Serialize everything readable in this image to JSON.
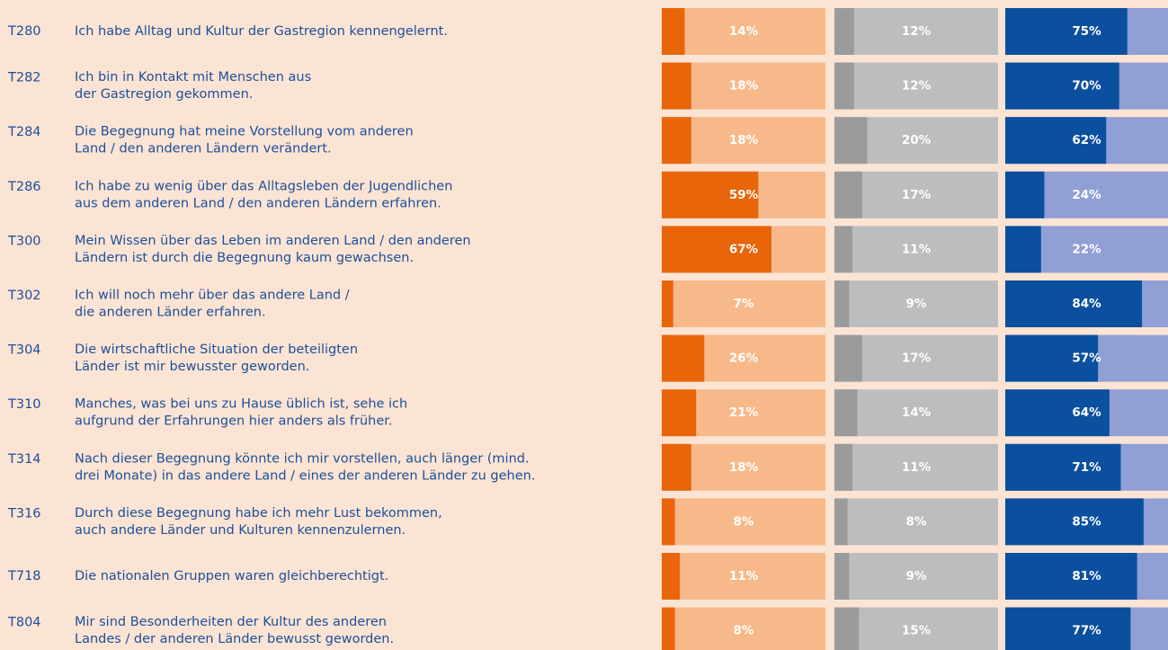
{
  "chart_data": {
    "type": "bar",
    "categories": [
      "T280",
      "T282",
      "T284",
      "T286",
      "T300",
      "T302",
      "T304",
      "T310",
      "T314",
      "T316",
      "T718",
      "T804"
    ],
    "labels": [
      [
        "Ich habe Alltag und Kultur der Gastregion kennengelernt."
      ],
      [
        "Ich bin in Kontakt mit Menschen aus",
        "der Gastregion gekommen."
      ],
      [
        "Die Begegnung hat meine Vorstellung vom anderen",
        "Land / den anderen Ländern verändert."
      ],
      [
        "Ich habe zu wenig über das Alltagsleben der Jugendlichen",
        "aus dem anderen Land / den anderen Ländern erfahren."
      ],
      [
        "Mein Wissen über das Leben im anderen Land / den anderen",
        "Ländern ist durch die Begegnung kaum gewachsen."
      ],
      [
        "Ich will noch mehr über das andere Land /",
        "die anderen Länder erfahren."
      ],
      [
        "Die wirtschaftliche Situation der beteiligten",
        "Länder ist mir bewusster geworden."
      ],
      [
        "Manches, was bei uns zu Hause üblich ist, sehe ich",
        "aufgrund der Erfahrungen hier anders als früher."
      ],
      [
        "Nach dieser Begegnung könnte ich mir vorstellen, auch länger (mind.",
        "drei Monate) in das andere Land / eines der anderen Länder zu gehen."
      ],
      [
        "Durch diese Begegnung habe ich mehr Lust bekommen,",
        "auch andere Länder und Kulturen kennenzulernen."
      ],
      [
        "Die nationalen Gruppen waren gleichberechtigt."
      ],
      [
        "Mir sind Besonderheiten der Kultur des anderen",
        "Landes / der anderen Länder bewusst geworden."
      ]
    ],
    "xlim": [
      0,
      100
    ],
    "series": [
      {
        "color": "#e8650a",
        "background": "#f8b98a",
        "values": [
          14,
          18,
          18,
          59,
          67,
          7,
          26,
          21,
          18,
          8,
          11,
          8
        ],
        "value_labels": [
          "14%",
          "18%",
          "18%",
          "59%",
          "67%",
          "7%",
          "26%",
          "21%",
          "18%",
          "8%",
          "11%",
          "8%"
        ]
      },
      {
        "color": "#9b9b9b",
        "background": "#bdbdbd",
        "values": [
          12,
          12,
          20,
          17,
          11,
          9,
          17,
          14,
          11,
          8,
          9,
          15
        ],
        "value_labels": [
          "12%",
          "12%",
          "20%",
          "17%",
          "11%",
          "9%",
          "17%",
          "14%",
          "11%",
          "8%",
          "9%",
          "15%"
        ]
      },
      {
        "color": "#0b4f9f",
        "background": "#909fd4",
        "values": [
          75,
          70,
          62,
          24,
          22,
          84,
          57,
          64,
          71,
          85,
          81,
          77
        ],
        "value_labels": [
          "75%",
          "70%",
          "62%",
          "24%",
          "22%",
          "84%",
          "57%",
          "64%",
          "71%",
          "85%",
          "81%",
          "77%"
        ]
      }
    ]
  }
}
